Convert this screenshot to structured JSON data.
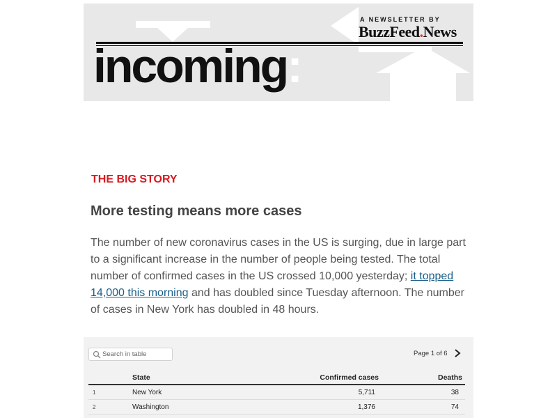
{
  "header": {
    "newsletter_by": "A NEWSLETTER BY",
    "brand_main": "BuzzFeed",
    "brand_news": "News",
    "wordmark": "incoming",
    "wordmark_colon": ":"
  },
  "story": {
    "kicker": "THE BIG STORY",
    "headline": "More testing means more cases",
    "body_before_link": "The number of new coronavirus cases in the US is surging, due in large part to a significant increase in the number of people being tested. The total number of confirmed cases in the US crossed 10,000 yesterday; ",
    "link_text": "it topped 14,000 this morning",
    "body_after_link": " and has doubled since Tuesday afternoon. The number of cases in New York has doubled in 48 hours."
  },
  "table": {
    "search_placeholder": "Search in table",
    "page_label": "Page 1 of 6",
    "columns": {
      "state": "State",
      "cases": "Confirmed cases",
      "deaths": "Deaths"
    },
    "rows": [
      {
        "index": "1",
        "state": "New York",
        "cases": "5,711",
        "deaths": "38"
      },
      {
        "index": "2",
        "state": "Washington",
        "cases": "1,376",
        "deaths": "74"
      }
    ]
  },
  "colors": {
    "kicker": "#d8191f",
    "link": "#1a5f8a",
    "banner_bg": "#e8e8e8"
  }
}
